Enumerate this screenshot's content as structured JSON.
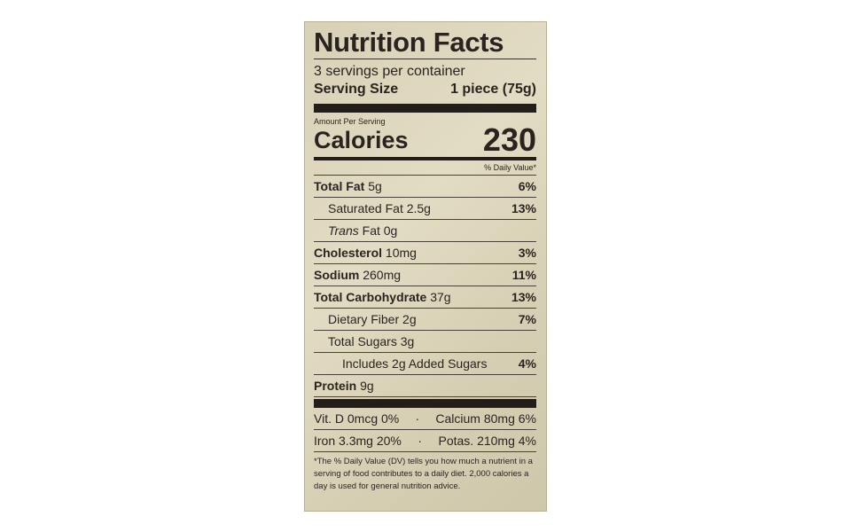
{
  "title": "Nutrition Facts",
  "servings": "3 servings per container",
  "serving_size_label": "Serving Size",
  "serving_size_value": "1 piece (75g)",
  "amount_per_serving": "Amount Per Serving",
  "calories_label": "Calories",
  "calories_value": "230",
  "dv_header": "% Daily Value*",
  "nutrients": [
    {
      "name": "Total Fat",
      "amount": "5g",
      "dv": "6%",
      "bold": true,
      "indent": 0
    },
    {
      "name": "Saturated Fat",
      "amount": "2.5g",
      "dv": "13%",
      "bold": false,
      "indent": 1
    },
    {
      "name": "Trans",
      "name_suffix": "Fat",
      "amount": "0g",
      "dv": "",
      "bold": false,
      "indent": 1
    },
    {
      "name": "Cholesterol",
      "amount": "10mg",
      "dv": "3%",
      "bold": true,
      "indent": 0
    },
    {
      "name": "Sodium",
      "amount": "260mg",
      "dv": "11%",
      "bold": true,
      "indent": 0
    },
    {
      "name": "Total Carbohydrate",
      "amount": "37g",
      "dv": "13%",
      "bold": true,
      "indent": 0
    },
    {
      "name": "Dietary Fiber",
      "amount": "2g",
      "dv": "7%",
      "bold": false,
      "indent": 1
    },
    {
      "name": "Total Sugars",
      "amount": "3g",
      "dv": "",
      "bold": false,
      "indent": 1
    },
    {
      "name": "Includes 2g Added Sugars",
      "amount": "",
      "dv": "4%",
      "bold": false,
      "indent": 2
    },
    {
      "name": "Protein",
      "amount": "9g",
      "dv": "",
      "bold": true,
      "indent": 0
    }
  ],
  "vitamins": [
    {
      "left": "Vit. D 0mcg 0%",
      "sep": "·",
      "right": "Calcium 80mg 6%"
    },
    {
      "left": "Iron 3.3mg 20%",
      "sep": "·",
      "right": "Potas. 210mg 4%"
    }
  ],
  "footnote": "*The % Daily Value (DV) tells you how much a nutrient in a serving of food contributes to a daily diet. 2,000 calories a day is used for general nutrition advice."
}
